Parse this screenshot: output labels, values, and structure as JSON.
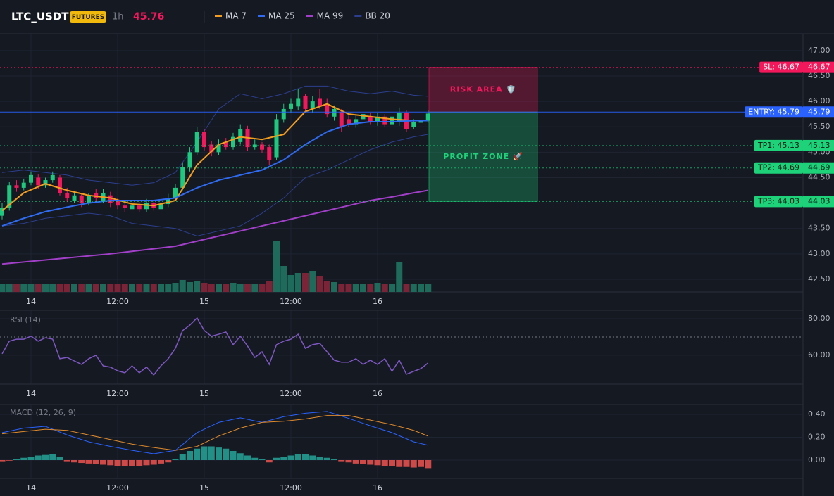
{
  "header": {
    "symbol": "LTC_USDT",
    "badge": "FUTURES",
    "interval": "1h",
    "price": 45.76
  },
  "chart_data": [
    {
      "type": "candlestick",
      "categories": [
        null,
        null,
        null,
        null,
        "14",
        null,
        null,
        null,
        null,
        null,
        null,
        null,
        null,
        null,
        null,
        null,
        "12:00",
        null,
        null,
        null,
        null,
        null,
        null,
        null,
        null,
        null,
        null,
        null,
        "15",
        null,
        null,
        null,
        null,
        null,
        null,
        null,
        null,
        null,
        null,
        null,
        "12:00",
        null,
        null,
        null,
        null,
        null,
        null,
        null,
        null,
        null,
        null,
        null,
        "16",
        null,
        null,
        null,
        null,
        null,
        null,
        null
      ],
      "open": [
        43.75,
        43.9,
        44.35,
        44.3,
        44.4,
        44.5,
        44.35,
        44.45,
        44.5,
        44.2,
        44.05,
        44.15,
        44.0,
        44.2,
        44.05,
        44.15,
        44.05,
        43.95,
        43.88,
        43.95,
        43.88,
        44.0,
        43.88,
        43.98,
        44.1,
        44.3,
        44.7,
        45.0,
        45.4,
        45.15,
        45.0,
        45.2,
        45.1,
        45.2,
        45.45,
        45.1,
        45.15,
        45.1,
        44.9,
        45.65,
        45.85,
        45.9,
        46.1,
        45.85,
        46.05,
        45.95,
        45.7,
        45.8,
        45.65,
        45.55,
        45.65,
        45.7,
        45.6,
        45.7,
        45.55,
        45.6,
        45.78,
        45.5,
        45.58,
        45.62
      ],
      "high": [
        44.0,
        44.42,
        44.45,
        44.48,
        44.62,
        44.56,
        44.5,
        44.62,
        44.55,
        44.3,
        44.22,
        44.2,
        44.2,
        44.28,
        44.28,
        44.22,
        44.1,
        44.0,
        44.02,
        44.02,
        44.08,
        44.05,
        44.05,
        44.18,
        44.38,
        44.8,
        45.1,
        45.5,
        45.45,
        45.22,
        45.25,
        45.28,
        45.38,
        45.55,
        45.52,
        45.25,
        45.2,
        45.15,
        45.75,
        45.95,
        46.05,
        46.25,
        46.15,
        46.1,
        46.25,
        46.05,
        45.92,
        45.85,
        45.72,
        45.72,
        45.82,
        45.78,
        45.78,
        45.75,
        45.8,
        45.88,
        45.82,
        45.65,
        45.7,
        45.82
      ],
      "low": [
        43.68,
        43.85,
        44.22,
        44.25,
        44.35,
        44.28,
        44.3,
        44.4,
        44.15,
        44.02,
        44.0,
        43.92,
        43.95,
        44.02,
        44.0,
        43.92,
        43.88,
        43.82,
        43.8,
        43.82,
        43.82,
        43.85,
        43.82,
        43.92,
        44.05,
        44.25,
        44.62,
        44.95,
        45.02,
        44.92,
        44.95,
        45.05,
        45.05,
        45.15,
        45.02,
        45.05,
        44.98,
        44.75,
        44.85,
        45.58,
        45.78,
        45.82,
        45.8,
        45.78,
        45.85,
        45.68,
        45.62,
        45.4,
        45.5,
        45.48,
        45.6,
        45.55,
        45.52,
        45.5,
        45.5,
        45.52,
        45.4,
        45.45,
        45.52,
        45.58
      ],
      "close": [
        43.9,
        44.35,
        44.3,
        44.4,
        44.55,
        44.35,
        44.45,
        44.55,
        44.2,
        44.1,
        44.15,
        44.0,
        44.15,
        44.1,
        44.2,
        44.0,
        43.95,
        43.9,
        43.95,
        43.88,
        44.0,
        43.9,
        43.98,
        44.1,
        44.3,
        44.7,
        45.0,
        45.4,
        45.1,
        45.0,
        45.15,
        45.1,
        45.3,
        45.45,
        45.1,
        45.15,
        45.05,
        44.85,
        45.65,
        45.85,
        45.95,
        46.05,
        45.85,
        46.0,
        45.9,
        45.75,
        45.85,
        45.5,
        45.55,
        45.65,
        45.75,
        45.6,
        45.7,
        45.55,
        45.7,
        45.78,
        45.45,
        45.6,
        45.62,
        45.76
      ],
      "volume": [
        12,
        11,
        12,
        11,
        12,
        12,
        11,
        12,
        11,
        11,
        12,
        12,
        11,
        11,
        12,
        11,
        12,
        11,
        11,
        12,
        12,
        11,
        11,
        12,
        13,
        17,
        14,
        15,
        13,
        12,
        11,
        12,
        13,
        12,
        12,
        11,
        12,
        15,
        73,
        37,
        24,
        27,
        27,
        30,
        22,
        15,
        14,
        12,
        11,
        11,
        12,
        12,
        13,
        12,
        11,
        43,
        12,
        11,
        11,
        12
      ],
      "up_color": "#1ec97f",
      "down_color": "#f2185b",
      "volume_up_color": "#1e6b5c",
      "volume_down_color": "#7c2437",
      "ylim": [
        42.25,
        47.33
      ],
      "yticks": [
        {
          "value": 42.5,
          "label": "42.50"
        },
        {
          "value": 43,
          "label": "43.00"
        },
        {
          "value": 43.5,
          "label": "43.50"
        },
        {
          "value": 44,
          "label": "44.00"
        },
        {
          "value": 44.5,
          "label": "44.50"
        },
        {
          "value": 45,
          "label": "45.00"
        },
        {
          "value": 45.5,
          "label": "45.50"
        },
        {
          "value": 46,
          "label": "46.00"
        },
        {
          "value": 46.5,
          "label": "46.50"
        },
        {
          "value": 47,
          "label": "47.00"
        }
      ],
      "grid": true,
      "series": [
        {
          "name": "MA 7",
          "color": "#f29d1f",
          "x": [
            0,
            3,
            6,
            9,
            12,
            15,
            18,
            21,
            24,
            27,
            30,
            33,
            36,
            39,
            42,
            45,
            48,
            51,
            54,
            57,
            59
          ],
          "values": [
            43.85,
            44.2,
            44.38,
            44.25,
            44.15,
            44.1,
            43.98,
            43.95,
            44.05,
            44.75,
            45.15,
            45.3,
            45.25,
            45.35,
            45.8,
            45.95,
            45.75,
            45.7,
            45.65,
            45.62,
            45.62
          ]
        },
        {
          "name": "MA 25",
          "color": "#2f6bf2",
          "x": [
            0,
            3,
            6,
            9,
            12,
            15,
            18,
            21,
            24,
            27,
            30,
            33,
            36,
            39,
            42,
            45,
            48,
            51,
            54,
            57,
            59
          ],
          "values": [
            43.55,
            43.7,
            43.83,
            43.92,
            44.0,
            44.05,
            44.05,
            44.05,
            44.1,
            44.3,
            44.45,
            44.55,
            44.65,
            44.85,
            45.15,
            45.4,
            45.55,
            45.6,
            45.6,
            45.62,
            45.62
          ]
        },
        {
          "name": "MA 99",
          "color": "#a23fc9",
          "x": [
            0,
            3,
            6,
            9,
            12,
            15,
            18,
            21,
            24,
            27,
            30,
            33,
            36,
            39,
            42,
            45,
            48,
            51,
            54,
            57,
            59
          ],
          "values": [
            42.8,
            42.84,
            42.88,
            42.92,
            42.96,
            43.0,
            43.05,
            43.1,
            43.15,
            43.25,
            43.35,
            43.45,
            43.55,
            43.65,
            43.75,
            43.85,
            43.95,
            44.05,
            44.12,
            44.2,
            44.25
          ]
        },
        {
          "name": "BB 20",
          "color": "#2c3f8f",
          "x": [
            0,
            3,
            6,
            9,
            12,
            15,
            18,
            21,
            24,
            27,
            30,
            33,
            36,
            39,
            42,
            45,
            48,
            51,
            54,
            57,
            59
          ],
          "upper": [
            44.6,
            44.65,
            44.6,
            44.55,
            44.45,
            44.4,
            44.35,
            44.4,
            44.6,
            45.2,
            45.85,
            46.15,
            46.05,
            46.15,
            46.3,
            46.3,
            46.2,
            46.15,
            46.2,
            46.12,
            46.1
          ],
          "lower": [
            43.55,
            43.6,
            43.7,
            43.75,
            43.8,
            43.75,
            43.6,
            43.55,
            43.5,
            43.35,
            43.45,
            43.55,
            43.8,
            44.1,
            44.5,
            44.65,
            44.85,
            45.05,
            45.2,
            45.3,
            45.35
          ]
        }
      ],
      "levels": [
        {
          "label": "SL: 46.67",
          "value": 46.67,
          "color": "#f2185b",
          "text_color": "#ffffff",
          "style": "dotted",
          "zone": "RISK AREA 🛡️"
        },
        {
          "label": "ENTRY: 45.79",
          "value": 45.79,
          "color": "#2962ff",
          "text_color": "#ffffff",
          "style": "solid"
        },
        {
          "label": "TP1: 45.13",
          "value": 45.13,
          "color": "#1ed27a",
          "text_color": "#0b1a12",
          "style": "dotted"
        },
        {
          "label": "TP2: 44.69",
          "value": 44.69,
          "color": "#1ed27a",
          "text_color": "#0b1a12",
          "style": "dotted"
        },
        {
          "label": "TP3: 44.03",
          "value": 44.03,
          "color": "#1ed27a",
          "text_color": "#0b1a12",
          "style": "dotted",
          "zone": "PROFIT ZONE 🚀"
        }
      ]
    },
    {
      "type": "line",
      "title": "RSI (14)",
      "color": "#7e57c2",
      "values": [
        60.8,
        67.7,
        68.8,
        68.8,
        70.4,
        67.7,
        69.6,
        68.8,
        58.1,
        58.8,
        56.9,
        55.0,
        58.1,
        60.0,
        54.2,
        53.5,
        51.5,
        50.4,
        54.2,
        50.4,
        53.5,
        49.2,
        54.2,
        58.1,
        63.8,
        73.5,
        76.5,
        80.4,
        73.5,
        70.4,
        71.5,
        72.7,
        65.8,
        70.4,
        65.0,
        58.8,
        61.9,
        55.0,
        65.8,
        67.7,
        68.8,
        71.5,
        63.8,
        65.8,
        66.5,
        61.9,
        57.3,
        56.2,
        56.2,
        58.1,
        55.0,
        57.3,
        55.0,
        58.1,
        51.2,
        57.3,
        49.6,
        51.2,
        52.7,
        55.8
      ],
      "hline": 70,
      "ylim": [
        44.2,
        84.6
      ],
      "yticks": [
        {
          "value": 60,
          "label": "60.00"
        },
        {
          "value": 80,
          "label": "80.00"
        }
      ],
      "grid": true
    },
    {
      "type": "macd",
      "title": "MACD (12, 26, 9)",
      "histogram": [
        -0.01,
        -0.005,
        0.01,
        0.02,
        0.03,
        0.04,
        0.045,
        0.05,
        0.03,
        -0.01,
        -0.02,
        -0.025,
        -0.03,
        -0.035,
        -0.04,
        -0.045,
        -0.05,
        -0.05,
        -0.055,
        -0.05,
        -0.045,
        -0.04,
        -0.03,
        -0.02,
        0.01,
        0.05,
        0.08,
        0.1,
        0.12,
        0.12,
        0.11,
        0.1,
        0.08,
        0.06,
        0.04,
        0.02,
        0.01,
        -0.02,
        0.02,
        0.03,
        0.04,
        0.05,
        0.05,
        0.04,
        0.03,
        0.02,
        0.01,
        -0.01,
        -0.02,
        -0.03,
        -0.035,
        -0.04,
        -0.045,
        -0.05,
        -0.055,
        -0.06,
        -0.06,
        -0.065,
        -0.06,
        -0.07
      ],
      "positive_color": "#26a69a",
      "negative_color": "#ef5350",
      "series": [
        {
          "color": "#2962ff",
          "x": [
            0,
            3,
            6,
            9,
            12,
            15,
            18,
            21,
            24,
            27,
            30,
            33,
            36,
            39,
            42,
            45,
            48,
            51,
            54,
            57,
            59
          ],
          "values": [
            0.24,
            0.28,
            0.295,
            0.22,
            0.16,
            0.12,
            0.085,
            0.055,
            0.085,
            0.24,
            0.33,
            0.37,
            0.33,
            0.38,
            0.41,
            0.425,
            0.365,
            0.3,
            0.24,
            0.16,
            0.13
          ]
        },
        {
          "color": "#e08a2b",
          "x": [
            0,
            3,
            6,
            9,
            12,
            15,
            18,
            21,
            24,
            27,
            30,
            33,
            36,
            39,
            42,
            45,
            48,
            51,
            54,
            57,
            59
          ],
          "values": [
            0.23,
            0.25,
            0.27,
            0.26,
            0.22,
            0.18,
            0.14,
            0.11,
            0.085,
            0.12,
            0.21,
            0.28,
            0.33,
            0.34,
            0.36,
            0.39,
            0.39,
            0.35,
            0.31,
            0.26,
            0.21
          ]
        }
      ],
      "ylim": [
        -0.16,
        0.486
      ],
      "yticks": [
        {
          "value": 0,
          "label": "0.00"
        },
        {
          "value": 0.2,
          "label": "0.20"
        },
        {
          "value": 0.4,
          "label": "0.40"
        }
      ],
      "grid": true
    }
  ]
}
